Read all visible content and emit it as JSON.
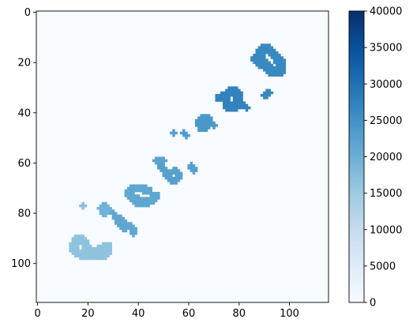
{
  "chart_data": {
    "type": "heatmap",
    "title": "",
    "xlabel": "",
    "ylabel": "",
    "image_size": [
      116,
      116
    ],
    "xlim": [
      -0.5,
      115.5
    ],
    "ylim": [
      115.5,
      -0.5
    ],
    "x_ticks": [
      0,
      20,
      40,
      60,
      80,
      100
    ],
    "x_tick_labels": [
      "0",
      "20",
      "40",
      "60",
      "80",
      "100"
    ],
    "y_ticks": [
      0,
      20,
      40,
      60,
      80,
      100
    ],
    "y_tick_labels": [
      "0",
      "20",
      "40",
      "60",
      "80",
      "100"
    ],
    "background_value": 0,
    "colormap": "Blues",
    "colorbar": {
      "range": [
        0,
        40000
      ],
      "ticks": [
        0,
        5000,
        10000,
        15000,
        20000,
        25000,
        30000,
        35000,
        40000
      ],
      "tick_labels": [
        "0",
        "5000",
        "10000",
        "15000",
        "20000",
        "25000",
        "30000",
        "35000",
        "40000"
      ]
    },
    "grid": false,
    "strokes": [
      {
        "desc": "large loop",
        "pts": [
          [
            14,
            94
          ],
          [
            15,
            91
          ],
          [
            17,
            90
          ],
          [
            19,
            92
          ],
          [
            20,
            95
          ],
          [
            23,
            96
          ],
          [
            26,
            94
          ],
          [
            28,
            93
          ],
          [
            27,
            96
          ],
          [
            25,
            97
          ],
          [
            22,
            97
          ],
          [
            19,
            97
          ],
          [
            16,
            96
          ],
          [
            14,
            94
          ]
        ],
        "value": 16500,
        "width": 2.6
      },
      {
        "desc": "dot",
        "pts": [
          [
            18,
            77
          ]
        ],
        "value": 17000,
        "width": 2.2
      },
      {
        "desc": "hook",
        "pts": [
          [
            25,
            78
          ],
          [
            27,
            77
          ],
          [
            28,
            79
          ],
          [
            26,
            80
          ]
        ],
        "value": 19500,
        "width": 2.0
      },
      {
        "desc": "small glyph",
        "pts": [
          [
            31,
            81
          ],
          [
            32,
            84
          ],
          [
            34,
            86
          ],
          [
            36,
            85
          ],
          [
            38,
            86
          ],
          [
            38,
            88
          ]
        ],
        "value": 21500,
        "width": 2.0
      },
      {
        "desc": "glyph stem",
        "pts": [
          [
            30,
            80
          ],
          [
            32,
            82
          ],
          [
            34,
            83
          ]
        ],
        "value": 21500,
        "width": 1.6
      },
      {
        "desc": "c shape",
        "pts": [
          [
            47,
            73
          ],
          [
            45,
            75
          ],
          [
            41,
            76
          ],
          [
            38,
            74
          ],
          [
            36,
            72
          ],
          [
            38,
            70
          ],
          [
            41,
            70
          ],
          [
            44,
            71
          ]
        ],
        "value": 21500,
        "width": 2.4
      },
      {
        "desc": "bar",
        "pts": [
          [
            47,
            59
          ],
          [
            50,
            59
          ]
        ],
        "value": 22000,
        "width": 2.0
      },
      {
        "desc": "six",
        "pts": [
          [
            49,
            61
          ],
          [
            51,
            64
          ],
          [
            53,
            67
          ],
          [
            56,
            66
          ],
          [
            56,
            64
          ],
          [
            54,
            63
          ],
          [
            52,
            65
          ]
        ],
        "value": 22500,
        "width": 2.0
      },
      {
        "desc": "tick",
        "pts": [
          [
            61,
            61
          ],
          [
            62,
            63
          ]
        ],
        "value": 22500,
        "width": 1.6
      },
      {
        "desc": "dot",
        "pts": [
          [
            54,
            48
          ]
        ],
        "value": 22500,
        "width": 1.8
      },
      {
        "desc": "dot pair",
        "pts": [
          [
            58,
            48
          ],
          [
            59,
            49
          ]
        ],
        "value": 23000,
        "width": 1.8
      },
      {
        "desc": "blob",
        "pts": [
          [
            64,
            44
          ],
          [
            66,
            42
          ],
          [
            68,
            43
          ],
          [
            67,
            45
          ],
          [
            65,
            46
          ]
        ],
        "value": 24000,
        "width": 2.6
      },
      {
        "desc": "tick",
        "pts": [
          [
            69,
            44
          ],
          [
            70,
            45
          ]
        ],
        "value": 24000,
        "width": 1.4
      },
      {
        "desc": "loop",
        "pts": [
          [
            72,
            34
          ],
          [
            75,
            33
          ],
          [
            77,
            31
          ],
          [
            79,
            32
          ],
          [
            80,
            34
          ],
          [
            79,
            37
          ],
          [
            76,
            38
          ],
          [
            75,
            36
          ]
        ],
        "value": 27500,
        "width": 2.6
      },
      {
        "desc": "tail",
        "pts": [
          [
            80,
            36
          ],
          [
            82,
            37
          ],
          [
            83,
            38
          ]
        ],
        "value": 27500,
        "width": 1.8
      },
      {
        "desc": "tick",
        "pts": [
          [
            90,
            33
          ],
          [
            92,
            32
          ]
        ],
        "value": 26500,
        "width": 1.6
      },
      {
        "desc": "zero",
        "pts": [
          [
            88,
            16
          ],
          [
            90,
            14
          ],
          [
            92,
            15
          ],
          [
            95,
            18
          ],
          [
            97,
            21
          ],
          [
            97,
            23
          ],
          [
            94,
            24
          ],
          [
            91,
            22
          ],
          [
            89,
            19
          ],
          [
            88,
            16
          ]
        ],
        "value": 26500,
        "width": 2.6
      },
      {
        "desc": "zero flick",
        "pts": [
          [
            86,
            18
          ],
          [
            88,
            21
          ]
        ],
        "value": 26500,
        "width": 1.6
      }
    ]
  }
}
